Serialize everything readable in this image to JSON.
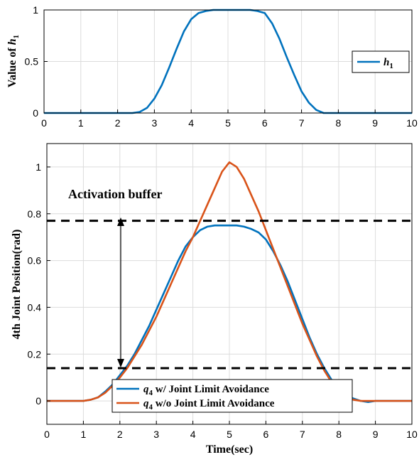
{
  "chart_data": [
    {
      "type": "line",
      "ylabel_prefix": "Value of ",
      "ylabel_var": "h",
      "ylabel_sub": "1",
      "xlim": [
        0,
        10
      ],
      "ylim": [
        0,
        1
      ],
      "xticks": [
        "0",
        "1",
        "2",
        "3",
        "4",
        "5",
        "6",
        "7",
        "8",
        "9",
        "10"
      ],
      "yticks": [
        "0",
        "0.5",
        "1"
      ],
      "grid": true,
      "legend_position": "right",
      "series": [
        {
          "name_var": "h",
          "name_sub": "1",
          "color": "#0072BD",
          "x": [
            0,
            0.5,
            1,
            1.5,
            2,
            2.4,
            2.6,
            2.8,
            3,
            3.2,
            3.4,
            3.6,
            3.8,
            4,
            4.2,
            4.4,
            4.6,
            4.8,
            5,
            5.2,
            5.4,
            5.6,
            5.8,
            6,
            6.2,
            6.4,
            6.6,
            6.8,
            7,
            7.2,
            7.4,
            7.6,
            8,
            8.5,
            9,
            9.5,
            10
          ],
          "y": [
            0,
            0,
            0,
            0,
            0,
            0,
            0.01,
            0.05,
            0.14,
            0.27,
            0.44,
            0.62,
            0.79,
            0.91,
            0.97,
            0.99,
            1,
            1,
            1,
            1,
            1,
            1,
            0.99,
            0.97,
            0.87,
            0.72,
            0.54,
            0.37,
            0.21,
            0.1,
            0.03,
            0,
            0,
            0,
            0,
            0,
            0
          ]
        }
      ]
    },
    {
      "type": "line",
      "xlabel": "Time(sec)",
      "ylabel": "4th Joint Position(rad)",
      "annotation": "Activation buffer",
      "xlim": [
        0,
        10
      ],
      "ylim": [
        -0.1,
        1.1
      ],
      "xticks": [
        "0",
        "1",
        "2",
        "3",
        "4",
        "5",
        "6",
        "7",
        "8",
        "9",
        "10"
      ],
      "yticks": [
        "0",
        "0.2",
        "0.4",
        "0.6",
        "0.8",
        "1"
      ],
      "grid": true,
      "buffer_lines": [
        0.14,
        0.77
      ],
      "legend_position": "bottom-center",
      "series": [
        {
          "name_var": "q",
          "name_sub": "4",
          "name": " w/ Joint Limit Avoidance",
          "color": "#0072BD",
          "x": [
            0,
            0.5,
            1,
            1.2,
            1.4,
            1.6,
            1.8,
            2,
            2.2,
            2.4,
            2.6,
            2.8,
            3,
            3.2,
            3.4,
            3.6,
            3.8,
            4,
            4.2,
            4.4,
            4.6,
            4.8,
            5,
            5.2,
            5.4,
            5.6,
            5.8,
            6,
            6.2,
            6.4,
            6.6,
            6.8,
            7,
            7.2,
            7.4,
            7.6,
            7.8,
            8,
            8.2,
            8.4,
            8.6,
            8.8,
            9,
            9.5,
            10
          ],
          "y": [
            0,
            0,
            0,
            0.005,
            0.015,
            0.04,
            0.07,
            0.11,
            0.15,
            0.2,
            0.26,
            0.32,
            0.39,
            0.46,
            0.53,
            0.6,
            0.66,
            0.7,
            0.73,
            0.745,
            0.75,
            0.75,
            0.75,
            0.75,
            0.745,
            0.735,
            0.72,
            0.69,
            0.64,
            0.58,
            0.51,
            0.43,
            0.35,
            0.27,
            0.2,
            0.14,
            0.09,
            0.05,
            0.025,
            0.01,
            0,
            -0.005,
            0,
            0,
            0
          ]
        },
        {
          "name_var": "q",
          "name_sub": "4",
          "name": " w/o Joint Limit Avoidance",
          "color": "#D95319",
          "x": [
            0,
            0.5,
            1,
            1.2,
            1.4,
            1.6,
            1.8,
            2,
            2.2,
            2.4,
            2.6,
            2.8,
            3,
            3.2,
            3.4,
            3.6,
            3.8,
            4,
            4.2,
            4.4,
            4.6,
            4.8,
            5,
            5.2,
            5.4,
            5.6,
            5.8,
            6,
            6.2,
            6.4,
            6.6,
            6.8,
            7,
            7.2,
            7.4,
            7.6,
            7.8,
            8,
            8.2,
            8.4,
            8.6,
            8.8,
            9,
            9.5,
            10
          ],
          "y": [
            0,
            0,
            0,
            0.005,
            0.015,
            0.035,
            0.065,
            0.1,
            0.14,
            0.19,
            0.24,
            0.3,
            0.36,
            0.43,
            0.5,
            0.57,
            0.64,
            0.7,
            0.77,
            0.84,
            0.91,
            0.98,
            1.02,
            1.0,
            0.95,
            0.88,
            0.81,
            0.73,
            0.65,
            0.57,
            0.49,
            0.41,
            0.33,
            0.26,
            0.19,
            0.13,
            0.08,
            0.04,
            0.015,
            0.005,
            0,
            0,
            0,
            0,
            0
          ]
        }
      ]
    }
  ]
}
